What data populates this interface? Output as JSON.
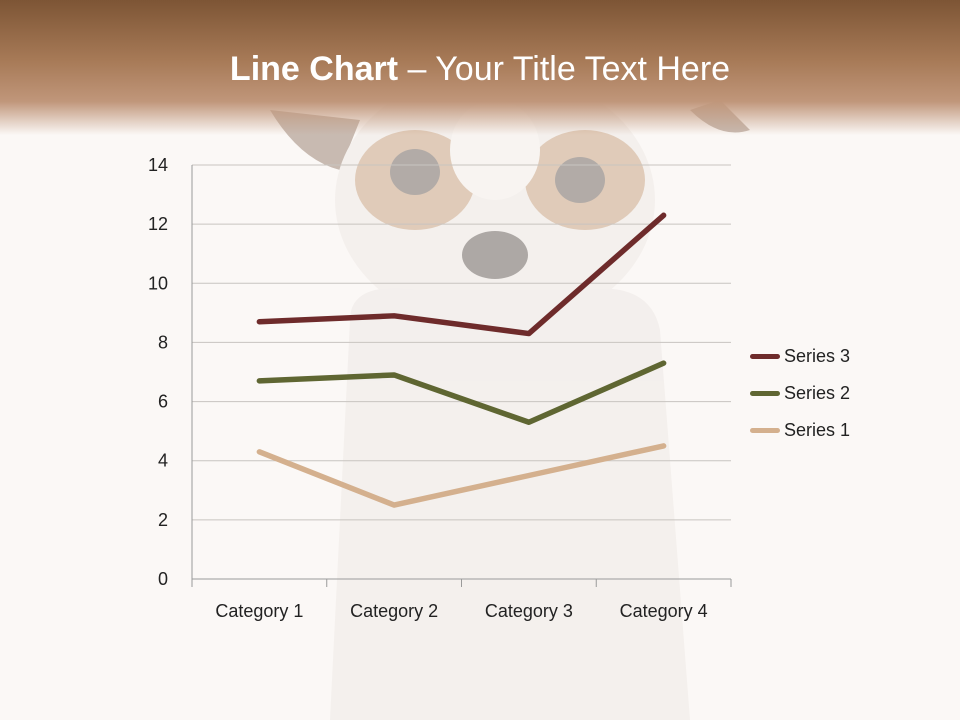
{
  "title": {
    "bold": "Line Chart",
    "rest": " – Your Title Text Here"
  },
  "chart_data": {
    "type": "line",
    "categories": [
      "Category 1",
      "Category 2",
      "Category 3",
      "Category 4"
    ],
    "series": [
      {
        "name": "Series 1",
        "values": [
          4.3,
          2.5,
          3.5,
          4.5
        ],
        "color": "#d4b08e"
      },
      {
        "name": "Series 2",
        "values": [
          6.7,
          6.9,
          5.3,
          7.3
        ],
        "color": "#5f6632"
      },
      {
        "name": "Series 3",
        "values": [
          8.7,
          8.9,
          8.3,
          12.3
        ],
        "color": "#6e2b2b"
      }
    ],
    "yticks": [
      "0",
      "2",
      "4",
      "6",
      "8",
      "10",
      "12",
      "14"
    ],
    "ylim": [
      0,
      14
    ],
    "grid": true,
    "legend": "right",
    "title": "",
    "xlabel": "",
    "ylabel": ""
  },
  "legend": [
    {
      "label": "Series 3",
      "color": "#6e2b2b"
    },
    {
      "label": "Series 2",
      "color": "#5f6632"
    },
    {
      "label": "Series 1",
      "color": "#d4b08e"
    }
  ]
}
